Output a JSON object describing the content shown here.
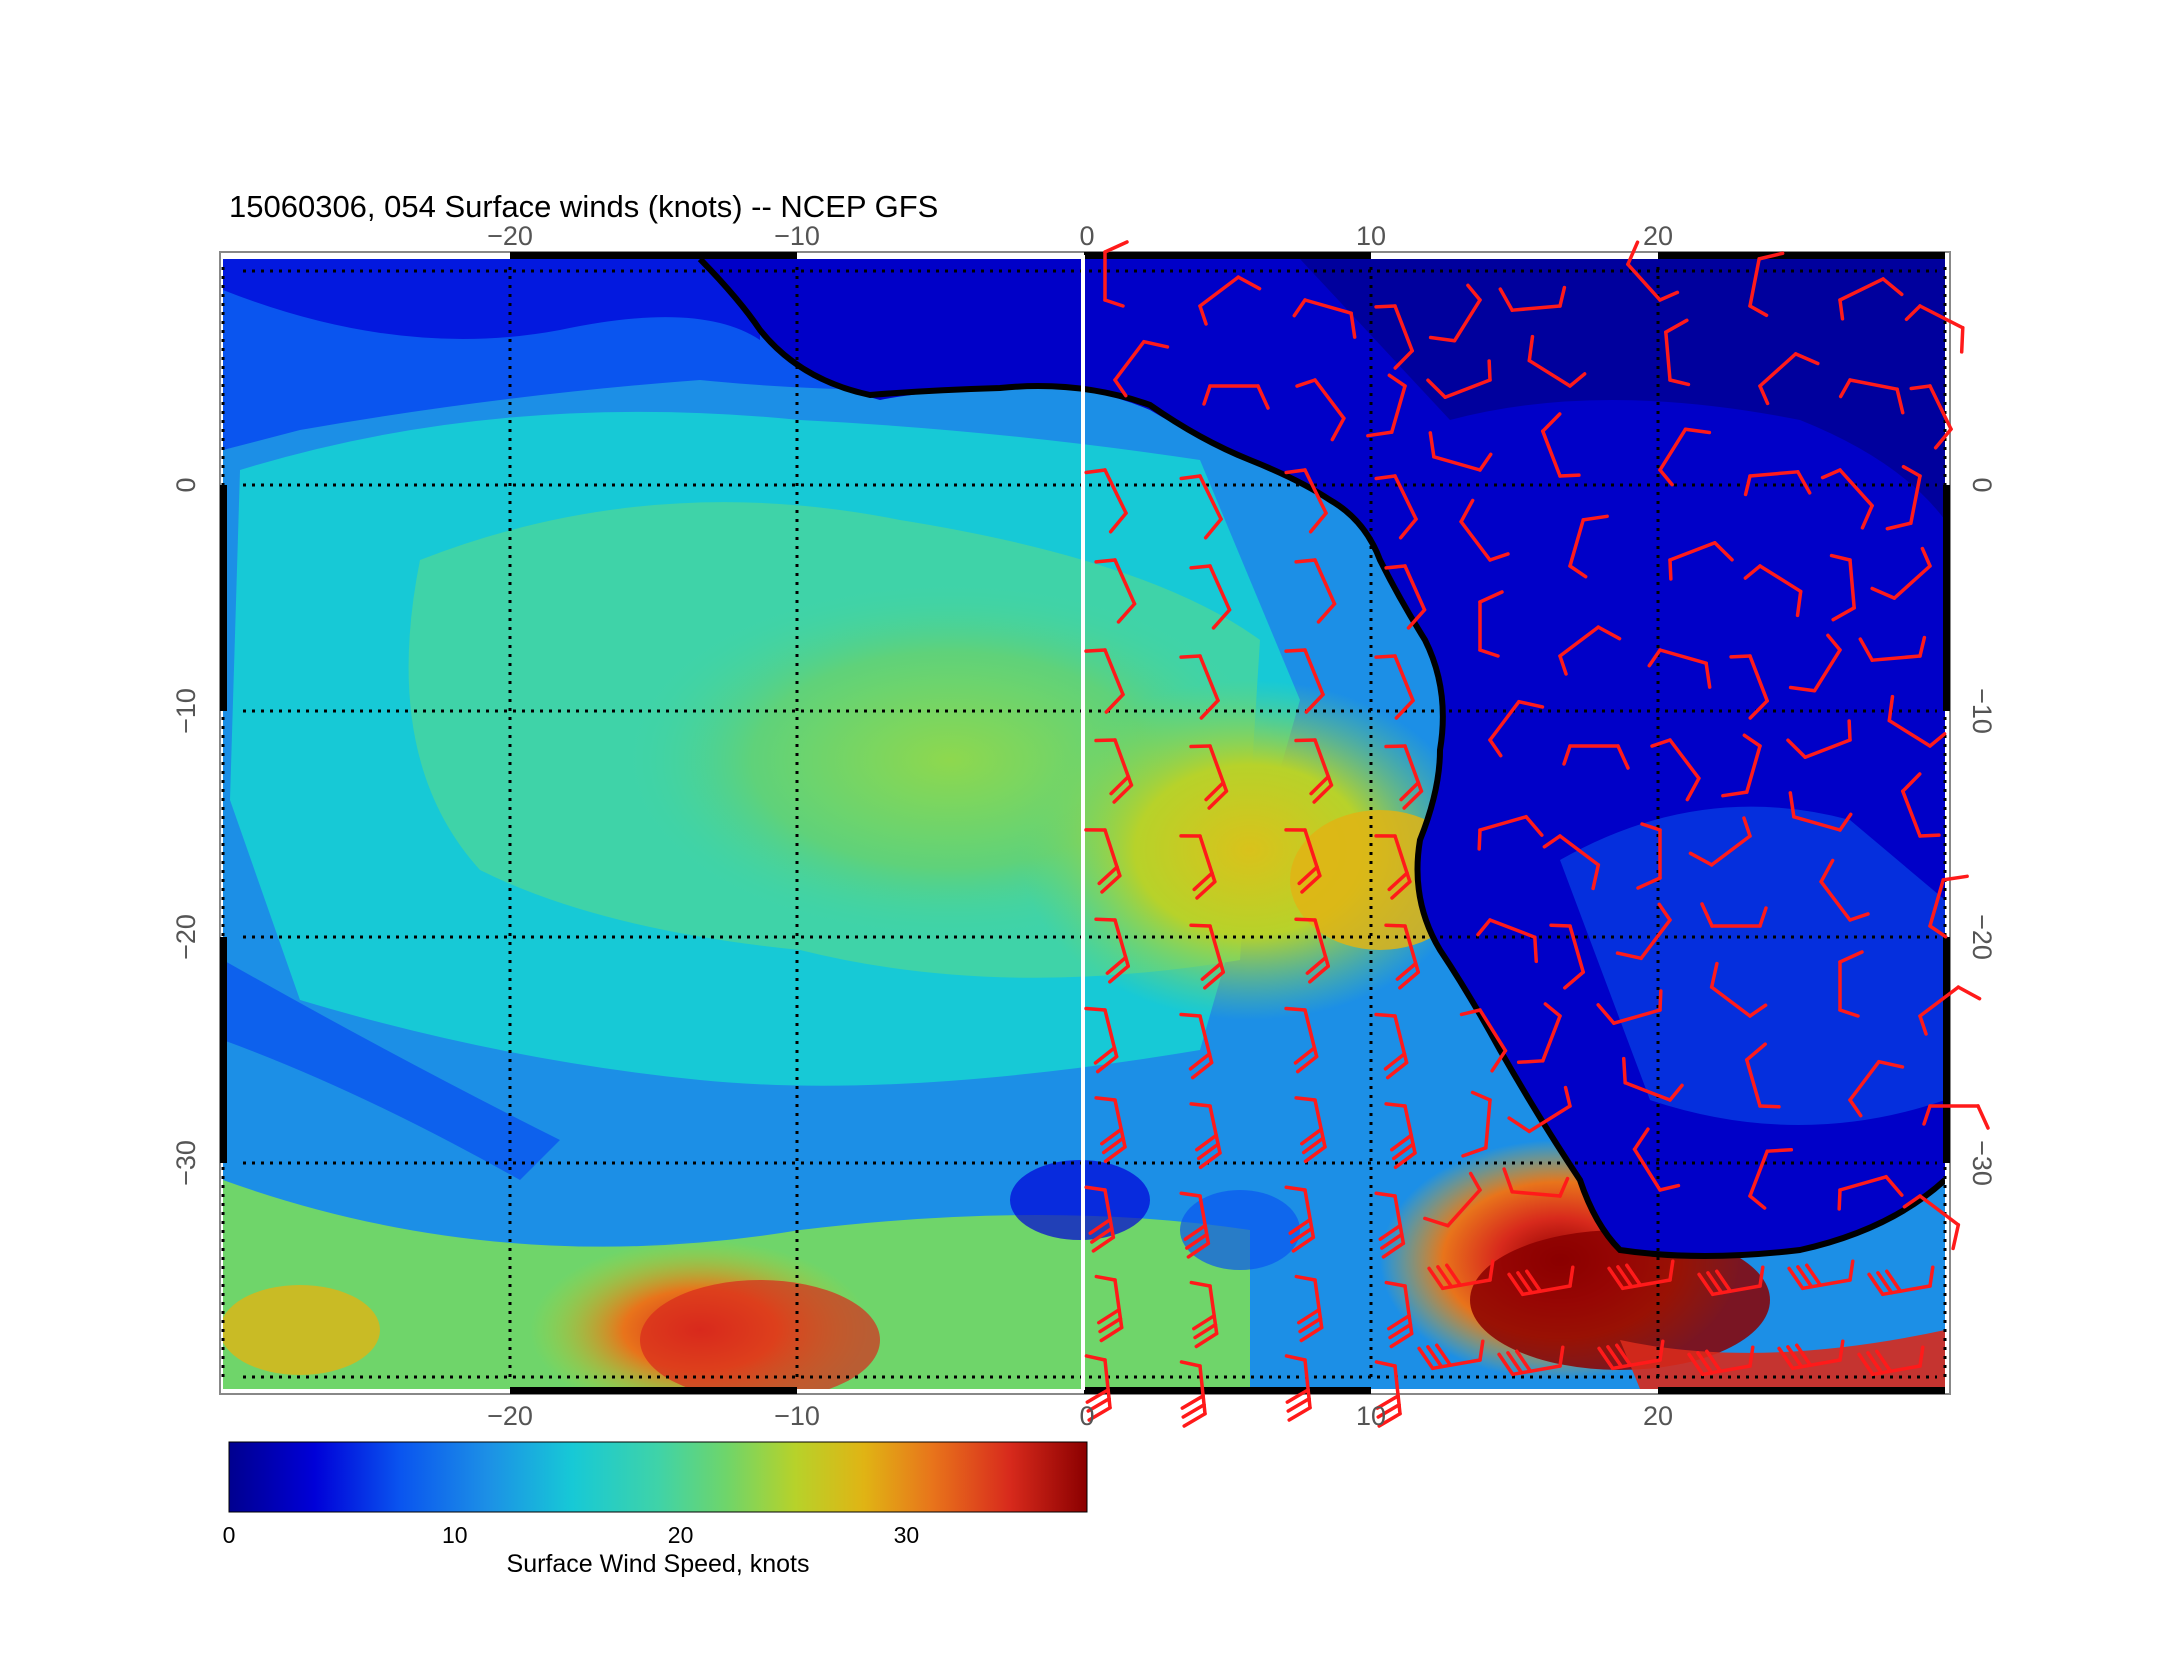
{
  "title": "15060306, 054 Surface winds (knots) -- NCEP GFS",
  "map": {
    "lon_range": [
      -30,
      30
    ],
    "lat_range": [
      -40,
      10
    ],
    "lon_ticks": [
      {
        "value": -20,
        "label": "−20"
      },
      {
        "value": -10,
        "label": "−10"
      },
      {
        "value": 0,
        "label": "0"
      },
      {
        "value": 10,
        "label": "10"
      },
      {
        "value": 20,
        "label": "20"
      }
    ],
    "lat_ticks": [
      {
        "value": 0,
        "label": "0"
      },
      {
        "value": -10,
        "label": "−10"
      },
      {
        "value": -20,
        "label": "−20"
      },
      {
        "value": -30,
        "label": "−30"
      }
    ],
    "barb_color": "#ff1a1a",
    "coast_color": "#000000"
  },
  "colorbar": {
    "label": "Surface Wind Speed, knots",
    "range": [
      0,
      38
    ],
    "ticks": [
      {
        "value": 0,
        "label": "0"
      },
      {
        "value": 10,
        "label": "10"
      },
      {
        "value": 20,
        "label": "20"
      },
      {
        "value": 30,
        "label": "30"
      }
    ],
    "colors": [
      "#00008f",
      "#0000d8",
      "#0a55ef",
      "#1c8fe6",
      "#17c9d6",
      "#3fd3a8",
      "#6fd56a",
      "#b7d22a",
      "#e0b414",
      "#e8741b",
      "#d82a1c",
      "#8b0000"
    ]
  }
}
